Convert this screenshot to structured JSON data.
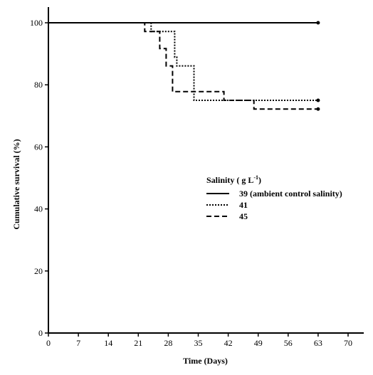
{
  "chart_data": {
    "type": "line",
    "step": true,
    "xlabel": "Time (Days)",
    "ylabel": "Cumulative survival (%)",
    "xlim": [
      0,
      70
    ],
    "ylim": [
      0,
      100
    ],
    "xticks": [
      0,
      7,
      14,
      21,
      28,
      35,
      42,
      49,
      56,
      63,
      70
    ],
    "yticks": [
      0,
      20,
      40,
      60,
      80,
      100
    ],
    "grid": false,
    "legend": {
      "title_main": "Salinity ( g L",
      "title_sup": "-1",
      "title_end": ")",
      "placement": "center-right"
    },
    "series": [
      {
        "name": "39 (ambient control salinity)",
        "style": "solid",
        "points": [
          [
            0,
            100
          ],
          [
            63,
            100
          ]
        ]
      },
      {
        "name": "41",
        "style": "dotted",
        "points": [
          [
            0,
            100
          ],
          [
            24,
            100
          ],
          [
            24,
            97.2
          ],
          [
            29.5,
            97.2
          ],
          [
            29.5,
            88.9
          ],
          [
            30,
            88.9
          ],
          [
            30,
            86.1
          ],
          [
            34,
            86.1
          ],
          [
            34,
            75
          ],
          [
            63,
            75
          ]
        ]
      },
      {
        "name": "45",
        "style": "dashed",
        "points": [
          [
            0,
            100
          ],
          [
            22.5,
            100
          ],
          [
            22.5,
            97.2
          ],
          [
            26,
            97.2
          ],
          [
            26,
            91.7
          ],
          [
            27.5,
            91.7
          ],
          [
            27.5,
            86.1
          ],
          [
            29,
            86.1
          ],
          [
            29,
            77.8
          ],
          [
            41,
            77.8
          ],
          [
            41,
            75
          ],
          [
            48,
            75
          ],
          [
            48,
            72.2
          ],
          [
            63,
            72.2
          ]
        ]
      }
    ]
  }
}
